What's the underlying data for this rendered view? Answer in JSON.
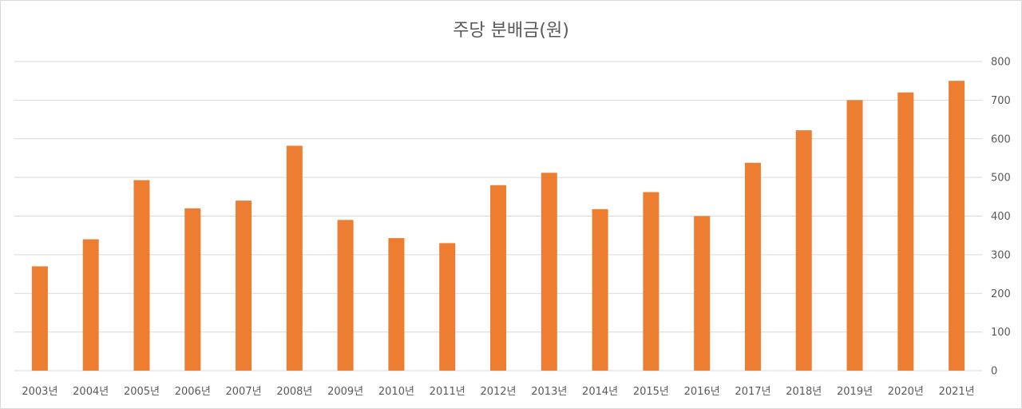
{
  "chart_data": {
    "type": "bar",
    "title": "주당 분배금(원)",
    "categories": [
      "2003년",
      "2004년",
      "2005년",
      "2006년",
      "2007년",
      "2008년",
      "2009년",
      "2010년",
      "2011년",
      "2012년",
      "2013년",
      "2014년",
      "2015년",
      "2016년",
      "2017년",
      "2018년",
      "2019년",
      "2020년",
      "2021년"
    ],
    "series": [
      {
        "values": [
          270,
          340,
          493,
          420,
          440,
          582,
          390,
          343,
          330,
          480,
          512,
          418,
          462,
          400,
          538,
          622,
          700,
          720,
          750
        ],
        "color": "#ED7D31"
      }
    ],
    "ylim": [
      0,
      800
    ],
    "yticks": [
      0,
      100,
      200,
      300,
      400,
      500,
      600,
      700,
      800
    ],
    "y_axis_side": "right",
    "grid": true,
    "legend": "none"
  }
}
